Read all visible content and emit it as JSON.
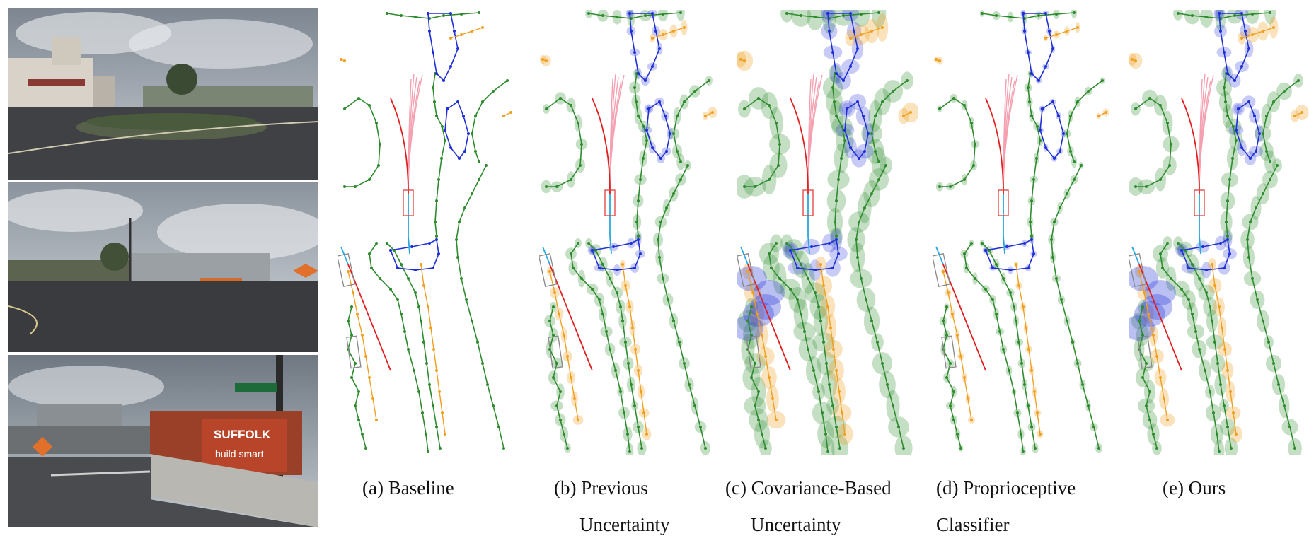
{
  "captions": {
    "a": {
      "line1": "(a) Baseline",
      "line2": ""
    },
    "b": {
      "line1": "(b) Previous",
      "line2": "Uncertainty"
    },
    "c": {
      "line1": "(c) Covariance-Based",
      "line2": "Uncertainty"
    },
    "d": {
      "line1": "(d) Proprioceptive",
      "line2": "Classifier"
    },
    "e": {
      "line1": "(e) Ours",
      "line2": ""
    }
  },
  "photo_signs": {
    "billboard_brand": "SUFFOLK",
    "billboard_tagline": "build smart"
  },
  "colors": {
    "divider": "#27a9df",
    "boundary": "#2e8b2e",
    "ped_crossing": "#1f2fd6",
    "center": "#f0a020",
    "ego_path": "#e02020",
    "prediction": "#f4a0b0",
    "ego_box": "#e04040",
    "agent_box": "#888888"
  },
  "panels": [
    {
      "id": "a",
      "uncertainty": "none"
    },
    {
      "id": "b",
      "uncertainty": "previous"
    },
    {
      "id": "c",
      "uncertainty": "covariance"
    },
    {
      "id": "d",
      "uncertainty": "proprioceptive"
    },
    {
      "id": "e",
      "uncertainty": "ours"
    }
  ]
}
